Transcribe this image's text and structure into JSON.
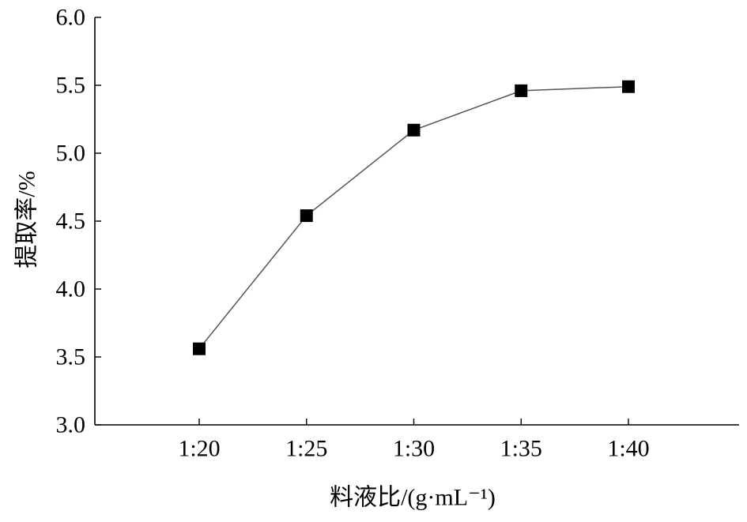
{
  "chart_data": {
    "type": "line",
    "categories": [
      "1:20",
      "1:25",
      "1:30",
      "1:35",
      "1:40"
    ],
    "series": [
      {
        "values": [
          3.56,
          4.54,
          5.17,
          5.46,
          5.49
        ]
      }
    ],
    "xlabel": "料液比/(g·mL⁻¹)",
    "ylabel": "提取率/%",
    "ylim": [
      3.0,
      6.0
    ],
    "yticks": [
      "3.0",
      "3.5",
      "4.0",
      "4.5",
      "5.0",
      "5.5",
      "6.0"
    ],
    "grid": false,
    "marker": "square"
  },
  "colors": {
    "line": "#555555",
    "marker": "#000000",
    "axis": "#000000"
  }
}
